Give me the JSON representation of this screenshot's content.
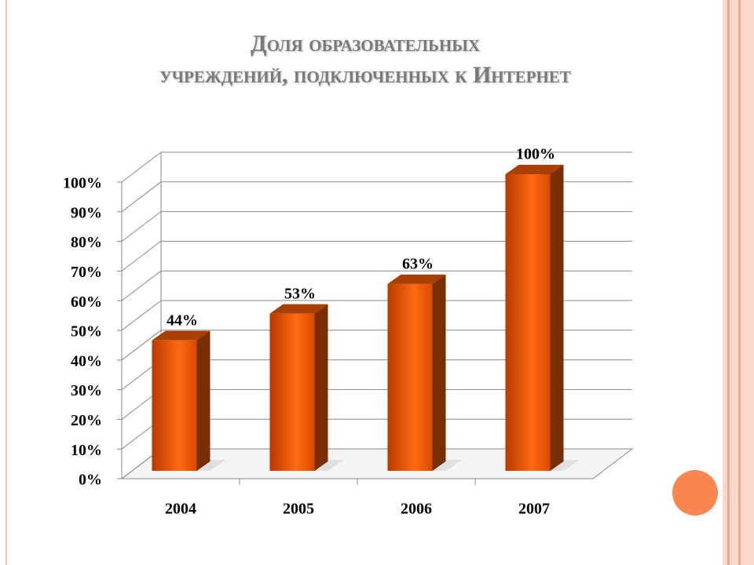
{
  "chart_data": {
    "type": "bar",
    "title": [
      "Доля образовательных",
      "учреждений, подключенных к Интернет"
    ],
    "categories": [
      "2004",
      "2005",
      "2006",
      "2007"
    ],
    "values": [
      44,
      53,
      63,
      100
    ],
    "value_labels": [
      "44%",
      "53%",
      "63%",
      "100%"
    ],
    "color": "#f25c05",
    "ylim": [
      0,
      100
    ],
    "yticks": [
      {
        "value": 0,
        "label": "0%"
      },
      {
        "value": 10,
        "label": "10%"
      },
      {
        "value": 20,
        "label": "20%"
      },
      {
        "value": 30,
        "label": "30%"
      },
      {
        "value": 40,
        "label": "40%"
      },
      {
        "value": 50,
        "label": "50%"
      },
      {
        "value": 60,
        "label": "60%"
      },
      {
        "value": 70,
        "label": "70%"
      },
      {
        "value": 80,
        "label": "80%"
      },
      {
        "value": 90,
        "label": "90%"
      },
      {
        "value": 100,
        "label": "100%"
      }
    ],
    "grid": true
  }
}
